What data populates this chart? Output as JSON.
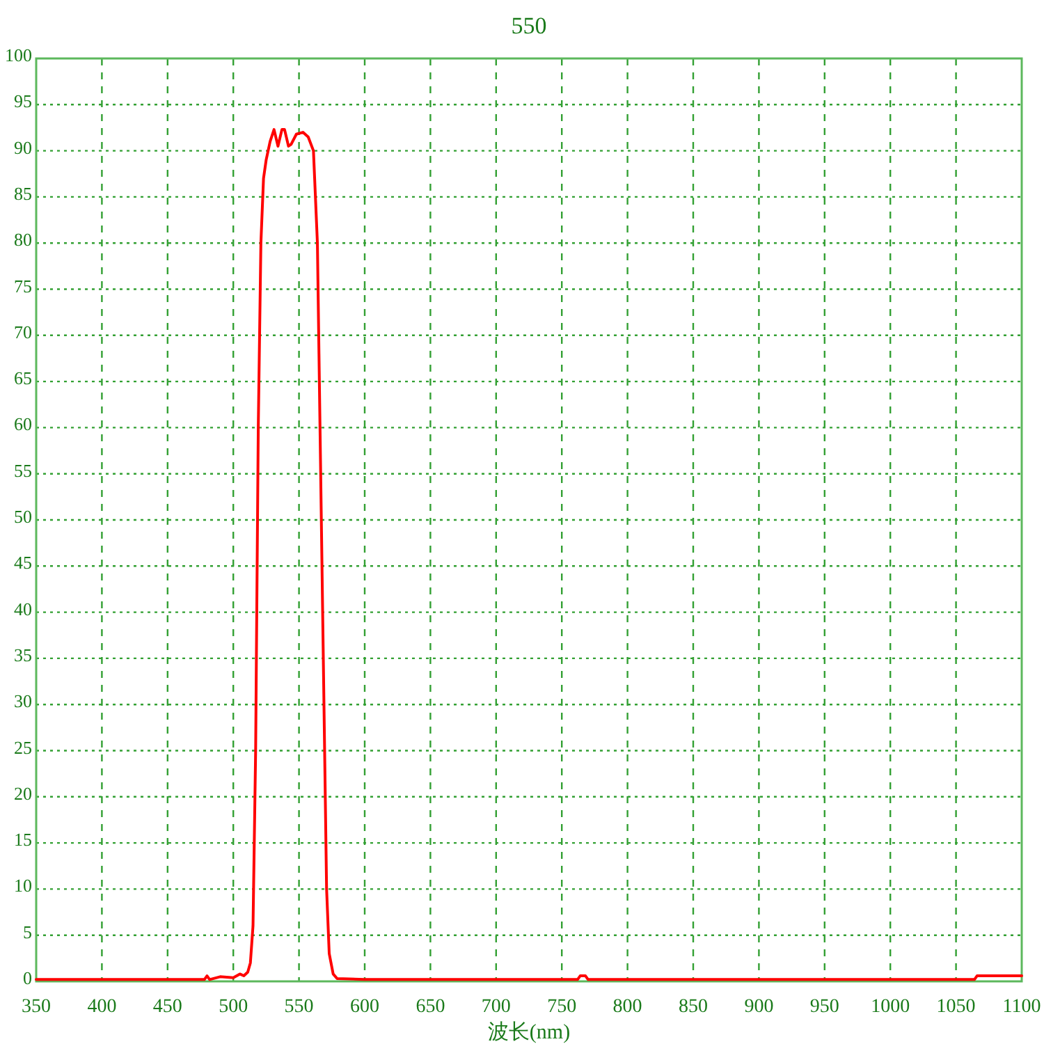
{
  "chart_data": {
    "type": "line",
    "title": "550",
    "xlabel": "波长(nm)",
    "x": [
      350,
      400,
      470,
      478,
      480,
      482,
      490,
      500,
      505,
      508,
      511,
      513,
      515,
      517,
      519,
      521,
      523,
      525,
      528,
      531,
      534,
      537,
      539,
      542,
      544,
      548,
      553,
      557,
      561,
      564,
      566,
      568,
      570,
      571,
      573,
      576,
      579,
      600,
      700,
      762,
      764,
      768,
      770,
      900,
      1064,
      1066,
      1100
    ],
    "series": [
      {
        "color": "#ff0000",
        "values": [
          0.2,
          0.2,
          0.2,
          0.2,
          0.6,
          0.2,
          0.5,
          0.4,
          0.8,
          0.6,
          1,
          2,
          6,
          25,
          60,
          80,
          87,
          89,
          91,
          92.3,
          90.5,
          92.3,
          92.3,
          90.5,
          90.7,
          91.8,
          92,
          91.5,
          90,
          80,
          60,
          40,
          20,
          10,
          3,
          0.8,
          0.3,
          0.2,
          0.2,
          0.2,
          0.6,
          0.6,
          0.2,
          0.2,
          0.2,
          0.6,
          0.6
        ]
      }
    ],
    "xlim": [
      350,
      1100
    ],
    "xticks": [
      350,
      400,
      450,
      500,
      550,
      600,
      650,
      700,
      750,
      800,
      850,
      900,
      950,
      1000,
      1050,
      1100
    ],
    "ylim": [
      0,
      100
    ],
    "yticks": [
      0,
      5,
      10,
      15,
      20,
      25,
      30,
      35,
      40,
      45,
      50,
      55,
      60,
      65,
      70,
      75,
      80,
      85,
      90,
      95,
      100
    ],
    "grid": true,
    "marker": "none",
    "line_style": "solid"
  }
}
